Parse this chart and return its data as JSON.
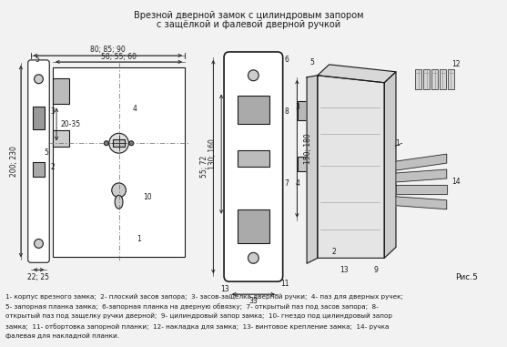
{
  "title_line1": "Врезной дверной замок с цилиндровым запором",
  "title_line2": "с защёлкой и фалевой дверной ручкой",
  "caption": "1- корпус врезного замка;  2- плоский засов запора;  3- засов-защёлка дверной ручки;  4- паз для дверных ручек;\n5- запорная планка замка;  6-запорная планка на дверную обвязку;  7- открытый паз под засов запора;  8-\nоткрытый паз под защелку ручки дверной;  9- цилиндровый запор замка;  10- гнездо под цилиндровый запор\nзамка;  11- отбортовка запорной планки;  12- накладка для замка;  13- винтовое крепление замка;  14- ручка\nфалевая для накладной планки.",
  "fig_label": "Рис.5",
  "dim_80_85_90": "80; 85; 90",
  "dim_50_55_60": "50; 55; 60",
  "dim_20_35": "20-35",
  "dim_200_230": "200; 230",
  "dim_22_25": "22; 25",
  "dim_55_72": "55; 72",
  "dim_130_160": "130; 160",
  "dim_150_180": "150; 180",
  "dim_33": "33",
  "bg_color": "#f2f2f2",
  "line_color": "#1a1a1a",
  "text_color": "#1a1a1a"
}
